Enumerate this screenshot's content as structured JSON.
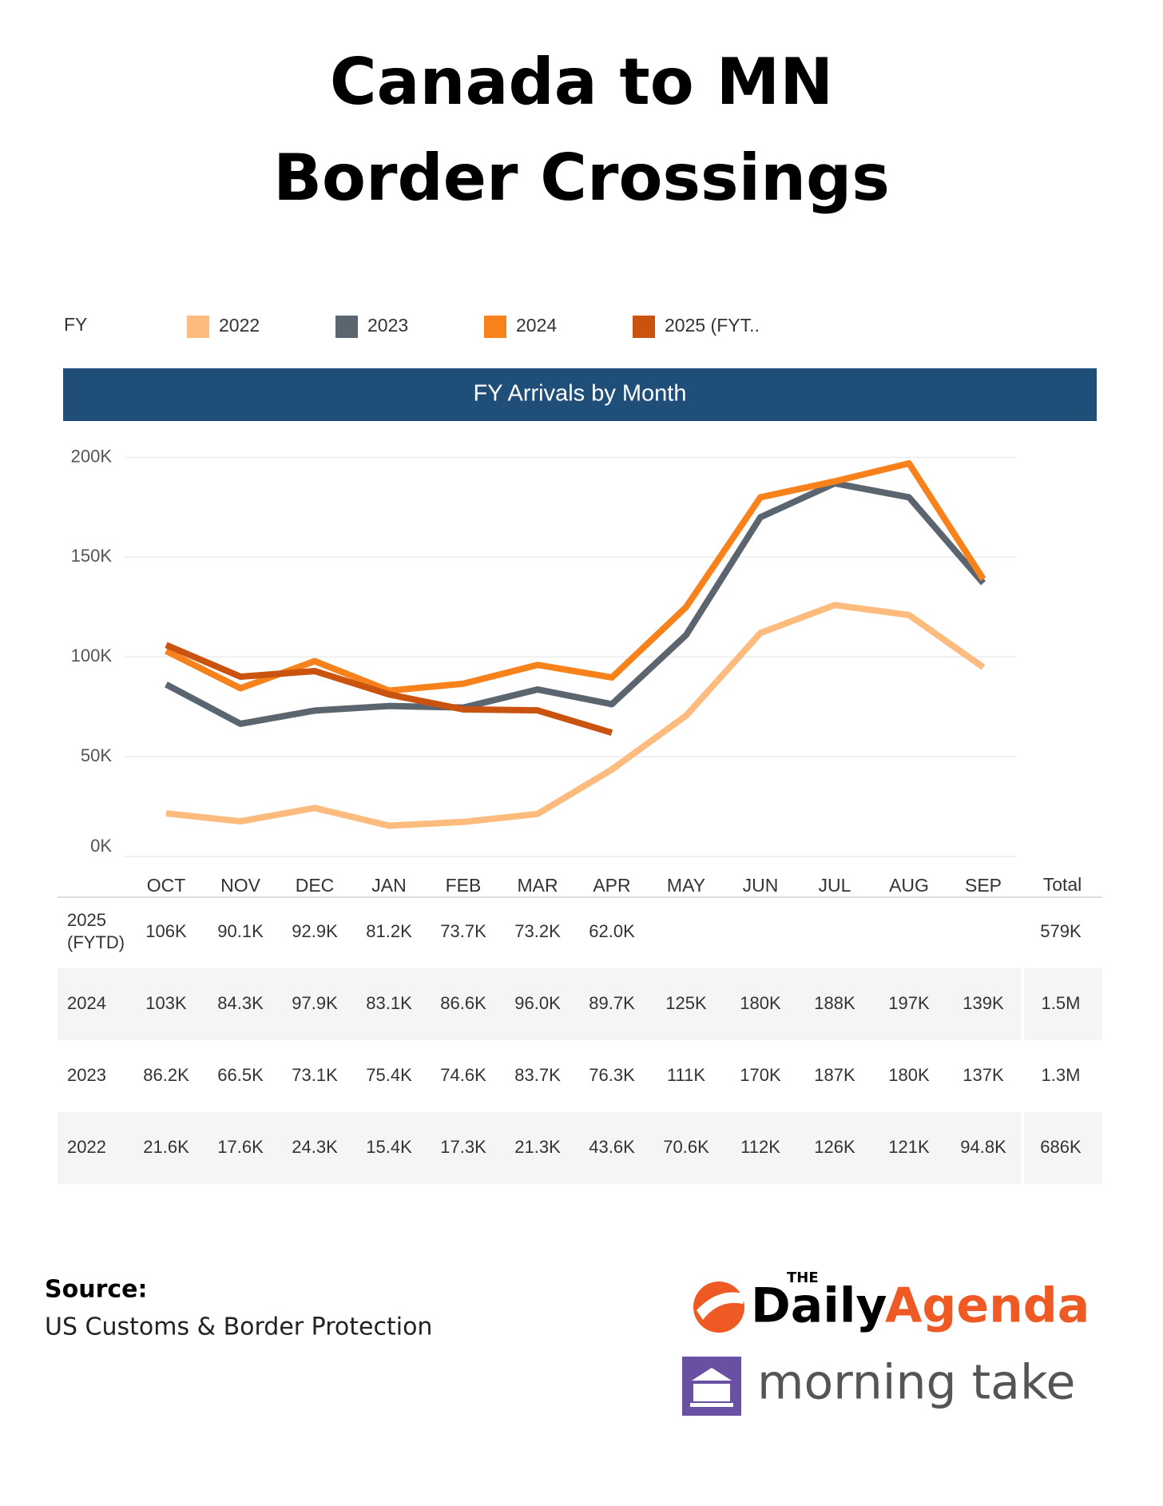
{
  "title": [
    "Canada to MN",
    "Border Crossings"
  ],
  "chart_data": {
    "type": "line",
    "title": "FY Arrivals by Month",
    "legend_title": "FY",
    "categories": [
      "OCT",
      "NOV",
      "DEC",
      "JAN",
      "FEB",
      "MAR",
      "APR",
      "MAY",
      "JUN",
      "JUL",
      "AUG",
      "SEP"
    ],
    "total_header": "Total",
    "series": [
      {
        "name": "2022",
        "row_label": "2022",
        "color": "#fdbb7d",
        "values": [
          21600,
          17600,
          24300,
          15400,
          17300,
          21300,
          43600,
          70600,
          112000,
          126000,
          121000,
          94800
        ],
        "value_labels": [
          "21.6K",
          "17.6K",
          "24.3K",
          "15.4K",
          "17.3K",
          "21.3K",
          "43.6K",
          "70.6K",
          "112K",
          "126K",
          "121K",
          "94.8K"
        ],
        "total": "686K"
      },
      {
        "name": "2023",
        "row_label": "2023",
        "color": "#5b6570",
        "values": [
          86200,
          66500,
          73100,
          75400,
          74600,
          83700,
          76300,
          111000,
          170000,
          187000,
          180000,
          137000
        ],
        "value_labels": [
          "86.2K",
          "66.5K",
          "73.1K",
          "75.4K",
          "74.6K",
          "83.7K",
          "76.3K",
          "111K",
          "170K",
          "187K",
          "180K",
          "137K"
        ],
        "total": "1.3M"
      },
      {
        "name": "2024",
        "row_label": "2024",
        "color": "#f7821b",
        "values": [
          103000,
          84300,
          97900,
          83100,
          86600,
          96000,
          89700,
          125000,
          180000,
          188000,
          197000,
          139000
        ],
        "value_labels": [
          "103K",
          "84.3K",
          "97.9K",
          "83.1K",
          "86.6K",
          "96.0K",
          "89.7K",
          "125K",
          "180K",
          "188K",
          "197K",
          "139K"
        ],
        "total": "1.5M"
      },
      {
        "name": "2025 (FYT..",
        "row_label": "2025 (FYTD)",
        "color": "#c9530f",
        "values": [
          106000,
          90100,
          92900,
          81200,
          73700,
          73200,
          62000,
          null,
          null,
          null,
          null,
          null
        ],
        "value_labels": [
          "106K",
          "90.1K",
          "92.9K",
          "81.2K",
          "73.7K",
          "73.2K",
          "62.0K",
          null,
          null,
          null,
          null,
          null
        ],
        "total": "579K"
      }
    ],
    "ylim": [
      0,
      205000
    ],
    "yticks": [
      {
        "value": 0,
        "label": "0K"
      },
      {
        "value": 50000,
        "label": "50K"
      },
      {
        "value": 100000,
        "label": "100K"
      },
      {
        "value": 150000,
        "label": "150K"
      },
      {
        "value": 200000,
        "label": "200K"
      }
    ],
    "grid": true
  },
  "footer": {
    "source_label": "Source:",
    "source": "US Customs & Border Protection",
    "logo_the": "THE",
    "logo_daily": "Daily",
    "logo_agenda": "Agenda",
    "logo_morning": "morning take"
  }
}
